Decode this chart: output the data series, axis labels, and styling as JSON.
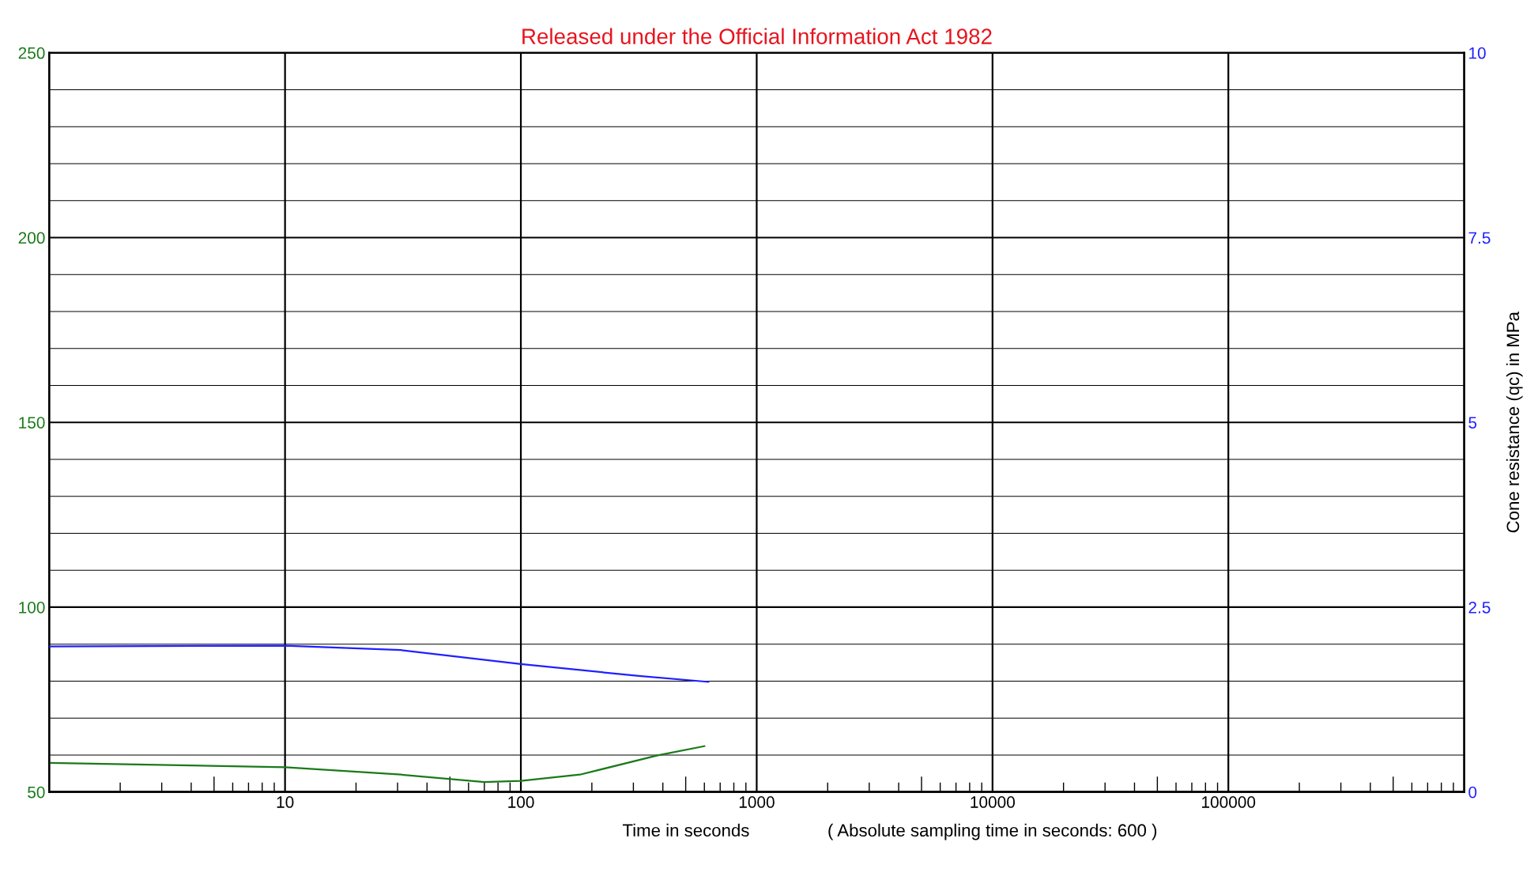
{
  "chart_data": {
    "type": "line",
    "title": "Released under the Official Information Act 1982",
    "xlabel": "Time in seconds",
    "y2label": "Cone resistance (qc) in MPa",
    "annotations": [
      "( Absolute sampling time in seconds: 600 )"
    ],
    "log": "x",
    "grid": true,
    "marker": "none",
    "line_style": "solid",
    "xlim": [
      1,
      1000000
    ],
    "xticks": [
      10,
      100,
      1000,
      10000,
      100000
    ],
    "ylim": [
      50,
      250
    ],
    "yticks": [
      50,
      100,
      150,
      200,
      250
    ],
    "y2lim": [
      0,
      10
    ],
    "y2ticks": [
      0,
      2.5,
      5,
      7.5,
      10
    ],
    "series": [
      {
        "color": "#1a7a1a",
        "x": [
          1,
          10,
          31,
          70,
          100,
          178,
          380,
          600
        ],
        "values": [
          57.9,
          56.7,
          54.7,
          52.7,
          53.0,
          54.7,
          59.9,
          62.4
        ]
      },
      {
        "color": "#2020ff",
        "axis": "y2",
        "x": [
          1,
          10,
          31,
          100,
          316,
          624
        ],
        "values": [
          1.97,
          1.98,
          1.92,
          1.73,
          1.57,
          1.49
        ]
      }
    ]
  }
}
